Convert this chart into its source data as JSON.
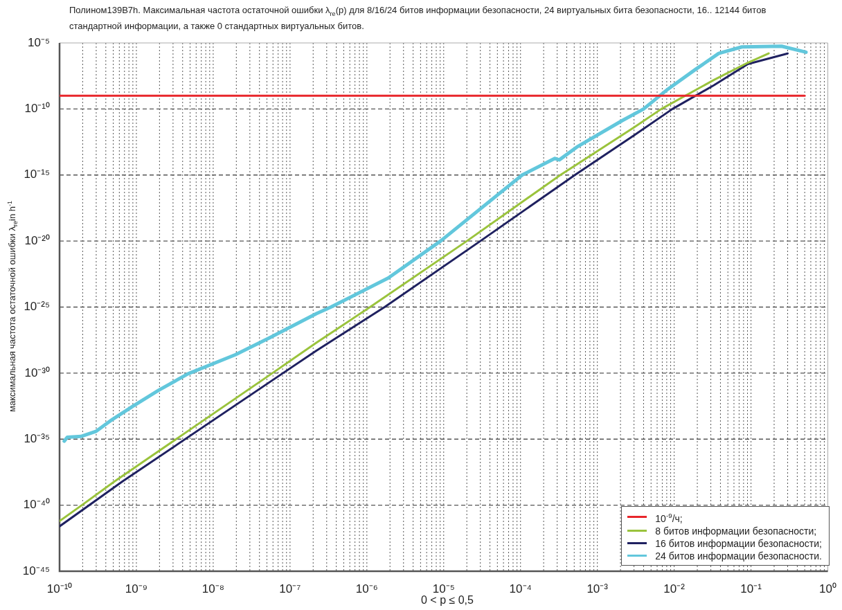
{
  "chart_data": {
    "type": "line",
    "title": "Полином139B7h. Максимальная частота остаточной ошибки λ$_{re}$(p) для 8/16/24 битов информации безопасности, 24 виртуальных бита безопасности, 16.. 12144 битов стандартной информации, а также 0 стандартных виртуальных битов.",
    "xlabel": "0 < p ≤ 0,5",
    "ylabel": "максимальная частота остаточной ошибки λ$_{re}$in h$^{-1}$",
    "log": "xy",
    "grid": true,
    "legend": "bottom right",
    "marker": "none",
    "line_style": "solid",
    "xlim": [
      1e-10,
      1
    ],
    "ylim": [
      1e-45,
      1e-05
    ],
    "xticks": [
      {
        "value": 1e-10,
        "label": "10⁻¹⁰"
      },
      {
        "value": 2e-10,
        "label": null
      },
      {
        "value": 3e-10,
        "label": null
      },
      {
        "value": 4e-10,
        "label": null
      },
      {
        "value": 5e-10,
        "label": null
      },
      {
        "value": 6e-10,
        "label": null
      },
      {
        "value": 7e-10,
        "label": null
      },
      {
        "value": 8e-10,
        "label": null
      },
      {
        "value": 9e-10,
        "label": null
      },
      {
        "value": 1e-09,
        "label": "10⁻⁹"
      },
      {
        "value": 2e-09,
        "label": null
      },
      {
        "value": 3e-09,
        "label": null
      },
      {
        "value": 4e-09,
        "label": null
      },
      {
        "value": 5e-09,
        "label": null
      },
      {
        "value": 6e-09,
        "label": null
      },
      {
        "value": 7e-09,
        "label": null
      },
      {
        "value": 8e-09,
        "label": null
      },
      {
        "value": 9e-09,
        "label": null
      },
      {
        "value": 1e-08,
        "label": "10⁻⁸"
      },
      {
        "value": 2e-08,
        "label": null
      },
      {
        "value": 3e-08,
        "label": null
      },
      {
        "value": 4e-08,
        "label": null
      },
      {
        "value": 5e-08,
        "label": null
      },
      {
        "value": 6e-08,
        "label": null
      },
      {
        "value": 7e-08,
        "label": null
      },
      {
        "value": 8e-08,
        "label": null
      },
      {
        "value": 9e-08,
        "label": null
      },
      {
        "value": 1e-07,
        "label": "10⁻⁷"
      },
      {
        "value": 2e-07,
        "label": null
      },
      {
        "value": 3e-07,
        "label": null
      },
      {
        "value": 4e-07,
        "label": null
      },
      {
        "value": 5e-07,
        "label": null
      },
      {
        "value": 6e-07,
        "label": null
      },
      {
        "value": 7e-07,
        "label": null
      },
      {
        "value": 8e-07,
        "label": null
      },
      {
        "value": 9e-07,
        "label": null
      },
      {
        "value": 1e-06,
        "label": "10⁻⁶"
      },
      {
        "value": 2e-06,
        "label": null
      },
      {
        "value": 3e-06,
        "label": null
      },
      {
        "value": 4e-06,
        "label": null
      },
      {
        "value": 5e-06,
        "label": null
      },
      {
        "value": 6e-06,
        "label": null
      },
      {
        "value": 7e-06,
        "label": null
      },
      {
        "value": 8e-06,
        "label": null
      },
      {
        "value": 9e-06,
        "label": null
      },
      {
        "value": 1e-05,
        "label": "10⁻⁵"
      },
      {
        "value": 2e-05,
        "label": null
      },
      {
        "value": 3e-05,
        "label": null
      },
      {
        "value": 4e-05,
        "label": null
      },
      {
        "value": 5e-05,
        "label": null
      },
      {
        "value": 6e-05,
        "label": null
      },
      {
        "value": 7e-05,
        "label": null
      },
      {
        "value": 8e-05,
        "label": null
      },
      {
        "value": 9e-05,
        "label": null
      },
      {
        "value": 0.0001,
        "label": "10⁻⁴"
      },
      {
        "value": 0.0002,
        "label": null
      },
      {
        "value": 0.0003,
        "label": null
      },
      {
        "value": 0.0004,
        "label": null
      },
      {
        "value": 0.0005,
        "label": null
      },
      {
        "value": 0.0006,
        "label": null
      },
      {
        "value": 0.0007,
        "label": null
      },
      {
        "value": 0.0008,
        "label": null
      },
      {
        "value": 0.0009,
        "label": null
      },
      {
        "value": 0.001,
        "label": "10⁻³"
      },
      {
        "value": 0.002,
        "label": null
      },
      {
        "value": 0.003,
        "label": null
      },
      {
        "value": 0.004,
        "label": null
      },
      {
        "value": 0.005,
        "label": null
      },
      {
        "value": 0.006,
        "label": null
      },
      {
        "value": 0.007,
        "label": null
      },
      {
        "value": 0.008,
        "label": null
      },
      {
        "value": 0.009,
        "label": null
      },
      {
        "value": 0.01,
        "label": "10⁻²"
      },
      {
        "value": 0.02,
        "label": null
      },
      {
        "value": 0.03,
        "label": null
      },
      {
        "value": 0.04,
        "label": null
      },
      {
        "value": 0.05,
        "label": null
      },
      {
        "value": 0.06,
        "label": null
      },
      {
        "value": 0.07,
        "label": null
      },
      {
        "value": 0.08,
        "label": null
      },
      {
        "value": 0.09,
        "label": null
      },
      {
        "value": 0.1,
        "label": "10⁻¹"
      },
      {
        "value": 0.2,
        "label": null
      },
      {
        "value": 0.3,
        "label": null
      },
      {
        "value": 0.4,
        "label": null
      },
      {
        "value": 0.5,
        "label": null
      },
      {
        "value": 0.6,
        "label": null
      },
      {
        "value": 0.7,
        "label": null
      },
      {
        "value": 0.8,
        "label": null
      },
      {
        "value": 0.9,
        "label": null
      },
      {
        "value": 1,
        "label": "10⁰"
      }
    ],
    "yticks": [
      {
        "value": 1e-45,
        "label": "10⁻⁴⁵"
      },
      {
        "value": 1e-40,
        "label": "10⁻⁴⁰"
      },
      {
        "value": 1e-35,
        "label": "10⁻³⁵"
      },
      {
        "value": 1e-30,
        "label": "10⁻³⁰"
      },
      {
        "value": 1e-25,
        "label": "10⁻²⁵"
      },
      {
        "value": 1e-20,
        "label": "10⁻²⁰"
      },
      {
        "value": 1e-15,
        "label": "10⁻¹⁵"
      },
      {
        "value": 1e-10,
        "label": "10⁻¹⁰"
      },
      {
        "value": 1e-05,
        "label": "10⁻⁵"
      }
    ],
    "series": [
      {
        "name": "10$^{-9}$/ч;",
        "color": "#e8262b",
        "x": [
          1e-10,
          0.5
        ],
        "values": [
          1e-09,
          1e-09
        ]
      },
      {
        "name": "8 битов информации безопасности;",
        "color": "#9ac33c",
        "x": [
          1e-10,
          1.95e-10,
          5.2e-10,
          5.9e-08,
          2.2e-07,
          1.1e-06,
          2e-05,
          0.00033,
          0.00054,
          0.003,
          0.0068,
          0.033,
          0.091,
          0.17
        ],
        "values": [
          6.3e-42,
          1e-40,
          6.3e-39,
          1e-30,
          2e-28,
          1e-25,
          1e-20,
          1e-15,
          6.3e-15,
          4e-12,
          1e-10,
          1.6e-08,
          3.2e-07,
          1.6e-06
        ]
      },
      {
        "name": "16 битов информации безопасности;",
        "color": "#1f2160",
        "x": [
          1e-10,
          6.6e-10,
          8.1e-08,
          2.2e-07,
          1.7e-06,
          3e-05,
          0.00051,
          0.003,
          0.0095,
          0.033,
          0.091,
          0.3
        ],
        "values": [
          2.5e-42,
          6.3e-39,
          1e-30,
          5e-29,
          1e-25,
          1e-20,
          1e-15,
          1e-12,
          1e-10,
          6.3e-09,
          2.5e-07,
          1.6e-06
        ]
      },
      {
        "name": "24 битов информации безопасности.",
        "color": "#62c7dc",
        "x": [
          1.15e-10,
          1.26e-10,
          1.9e-10,
          3e-10,
          4.9e-10,
          9.1e-10,
          1.95e-09,
          4.7e-09,
          1.95e-08,
          5.5e-08,
          2.2e-07,
          3.4e-07,
          1.9e-06,
          9.1e-06,
          0.000105,
          0.00028,
          0.00032,
          0.00054,
          0.0021,
          0.004,
          0.0083,
          0.019,
          0.038,
          0.076,
          0.25,
          0.52
        ],
        "values": [
          7.1e-36,
          1.4e-35,
          1.6e-35,
          4e-35,
          3.2e-34,
          3.2e-33,
          5e-32,
          8.9e-31,
          2.5e-29,
          5e-28,
          3.2e-26,
          1e-25,
          1.6e-23,
          1e-20,
          1e-15,
          1.8e-14,
          1.4e-14,
          1.3e-13,
          1.3e-11,
          1e-10,
          3.2e-09,
          1e-07,
          1.6e-06,
          5e-06,
          5.6e-06,
          2e-06
        ]
      }
    ]
  }
}
